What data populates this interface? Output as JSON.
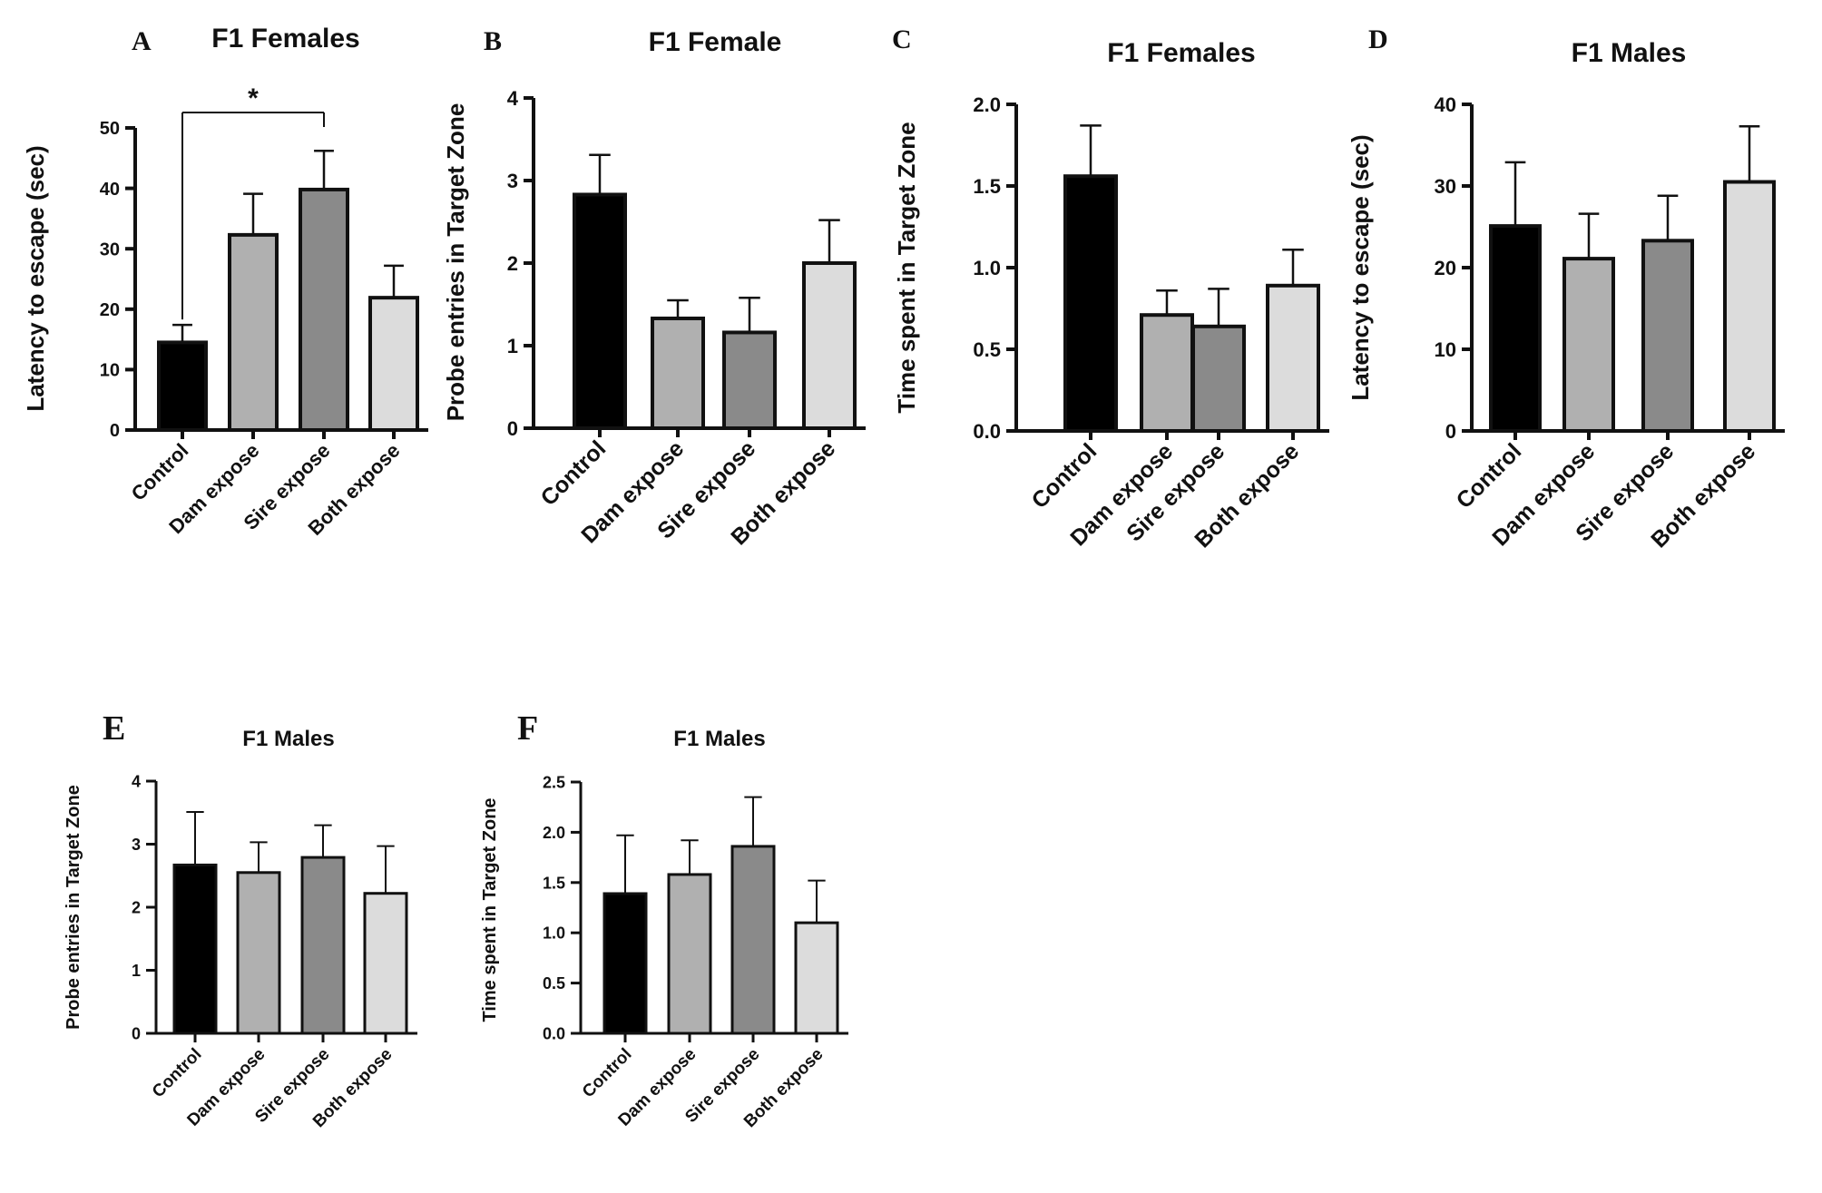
{
  "chart_data": [
    {
      "type": "bar",
      "panel": "A",
      "title": "F1 Females",
      "xlabel": "",
      "ylabel": "Latency to escape (sec)",
      "categories": [
        "Control",
        "Dam expose",
        "Sire expose",
        "Both expose"
      ],
      "values": [
        14.5,
        32.3,
        39.8,
        21.9
      ],
      "errors": [
        2.9,
        6.8,
        6.4,
        5.3
      ],
      "colors": [
        "#000000",
        "#b0b0b0",
        "#8a8a8a",
        "#dcdcdc"
      ],
      "ylim": [
        0,
        50
      ],
      "yticks": [
        "0",
        "10",
        "20",
        "30",
        "40",
        "50"
      ],
      "annotations": [
        {
          "text": "*",
          "from": "Control",
          "to": "Sire expose"
        }
      ]
    },
    {
      "type": "bar",
      "panel": "B",
      "title": "F1 Female",
      "xlabel": "",
      "ylabel": "Probe entries in Target Zone",
      "categories": [
        "Control",
        "Dam expose",
        "Sire expose",
        "Both expose"
      ],
      "values": [
        2.83,
        1.33,
        1.16,
        2.0
      ],
      "errors": [
        0.48,
        0.22,
        0.42,
        0.52
      ],
      "colors": [
        "#000000",
        "#b0b0b0",
        "#8a8a8a",
        "#dcdcdc"
      ],
      "ylim": [
        0,
        4
      ],
      "yticks": [
        "0",
        "1",
        "2",
        "3",
        "4"
      ]
    },
    {
      "type": "bar",
      "panel": "C",
      "title": "F1 Females",
      "xlabel": "",
      "ylabel": "Time spent in Target Zone",
      "categories": [
        "Control",
        "Dam expose",
        "Sire expose",
        "Both expose"
      ],
      "values": [
        1.56,
        0.71,
        0.64,
        0.89
      ],
      "errors": [
        0.31,
        0.15,
        0.23,
        0.22
      ],
      "colors": [
        "#000000",
        "#b0b0b0",
        "#8a8a8a",
        "#dcdcdc"
      ],
      "ylim": [
        0,
        2.0
      ],
      "yticks": [
        "0.0",
        "0.5",
        "1.0",
        "1.5",
        "2.0"
      ]
    },
    {
      "type": "bar",
      "panel": "D",
      "title": "F1 Males",
      "xlabel": "",
      "ylabel": "Latency to escape (sec)",
      "categories": [
        "Control",
        "Dam expose",
        "Sire expose",
        "Both expose"
      ],
      "values": [
        25.1,
        21.1,
        23.3,
        30.5
      ],
      "errors": [
        7.8,
        5.5,
        5.5,
        6.8
      ],
      "colors": [
        "#000000",
        "#b0b0b0",
        "#8a8a8a",
        "#dcdcdc"
      ],
      "ylim": [
        0,
        40
      ],
      "yticks": [
        "0",
        "10",
        "20",
        "30",
        "40"
      ]
    },
    {
      "type": "bar",
      "panel": "E",
      "title": "F1 Males",
      "xlabel": "",
      "ylabel": "Probe entries in Target Zone",
      "categories": [
        "Control",
        "Dam expose",
        "Sire expose",
        "Both expose"
      ],
      "values": [
        2.67,
        2.55,
        2.79,
        2.22
      ],
      "errors": [
        0.84,
        0.48,
        0.51,
        0.75
      ],
      "colors": [
        "#000000",
        "#b0b0b0",
        "#8a8a8a",
        "#dcdcdc"
      ],
      "ylim": [
        0,
        4
      ],
      "yticks": [
        "0",
        "1",
        "2",
        "3",
        "4"
      ]
    },
    {
      "type": "bar",
      "panel": "F",
      "title": "F1 Males",
      "xlabel": "",
      "ylabel": "Time spent in Target Zone",
      "categories": [
        "Control",
        "Dam expose",
        "Sire expose",
        "Both expose"
      ],
      "values": [
        1.39,
        1.58,
        1.86,
        1.1
      ],
      "errors": [
        0.58,
        0.34,
        0.49,
        0.42
      ],
      "colors": [
        "#000000",
        "#b0b0b0",
        "#8a8a8a",
        "#dcdcdc"
      ],
      "ylim": [
        0,
        2.5
      ],
      "yticks": [
        "0.0",
        "0.5",
        "1.0",
        "1.5",
        "2.0",
        "2.5"
      ]
    }
  ]
}
